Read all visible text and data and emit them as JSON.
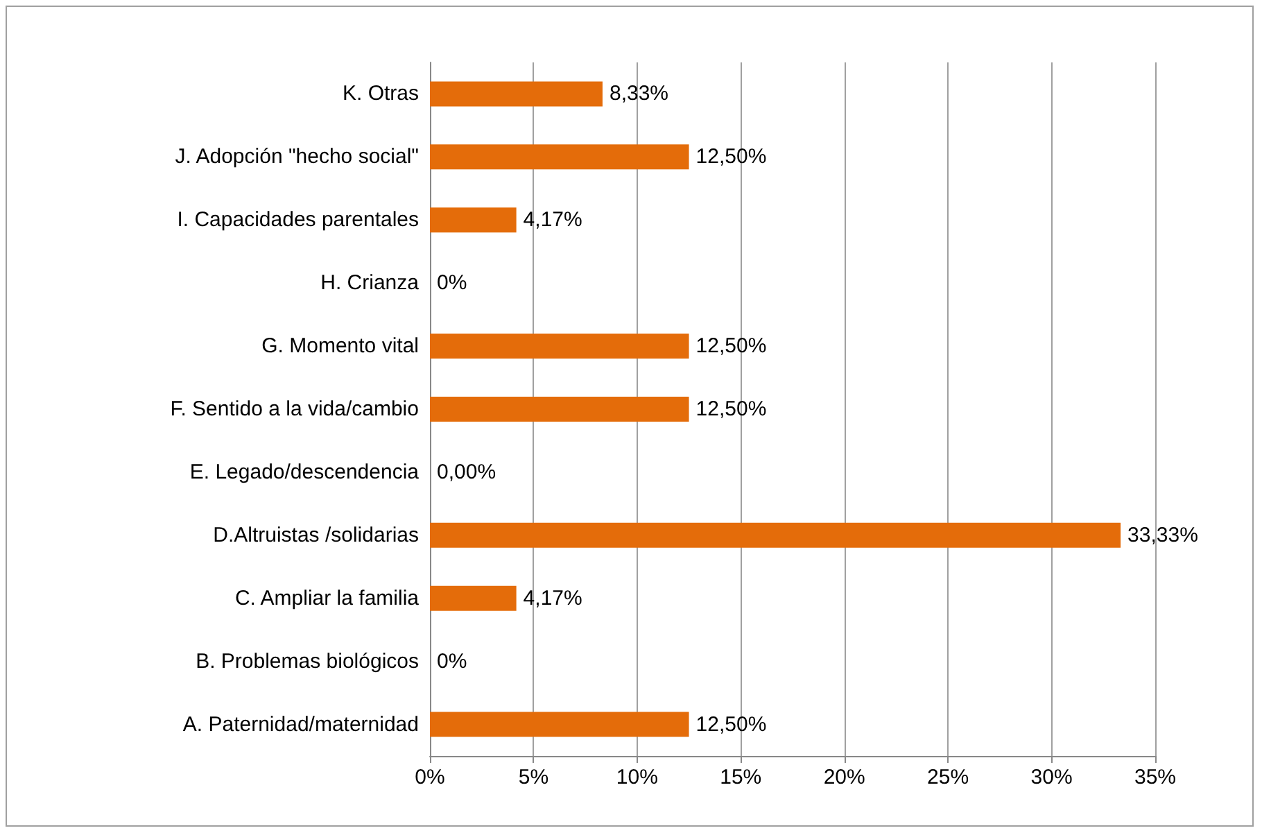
{
  "chart_data": {
    "type": "bar",
    "orientation": "horizontal",
    "categories": [
      "K. Otras",
      "J. Adopción \"hecho social\"",
      "I. Capacidades parentales",
      "H. Crianza",
      "G. Momento vital",
      "F. Sentido a la vida/cambio",
      "E. Legado/descendencia",
      "D.Altruistas /solidarias",
      "C. Ampliar la familia",
      "B. Problemas biológicos",
      "A. Paternidad/maternidad"
    ],
    "values": [
      8.33,
      12.5,
      4.17,
      0,
      12.5,
      12.5,
      0,
      33.33,
      4.17,
      0,
      12.5
    ],
    "value_labels": [
      "8,33%",
      "12,50%",
      "4,17%",
      "0%",
      "12,50%",
      "12,50%",
      "0,00%",
      "33,33%",
      "4,17%",
      "0%",
      "12,50%"
    ],
    "color": "#e46c0a",
    "xlim": [
      0,
      35
    ],
    "xticks": [
      {
        "value": 0,
        "label": "0%"
      },
      {
        "value": 5,
        "label": "5%"
      },
      {
        "value": 10,
        "label": "10%"
      },
      {
        "value": 15,
        "label": "15%"
      },
      {
        "value": 20,
        "label": "20%"
      },
      {
        "value": 25,
        "label": "25%"
      },
      {
        "value": 30,
        "label": "30%"
      },
      {
        "value": 35,
        "label": "35%"
      }
    ],
    "grid": "x"
  }
}
